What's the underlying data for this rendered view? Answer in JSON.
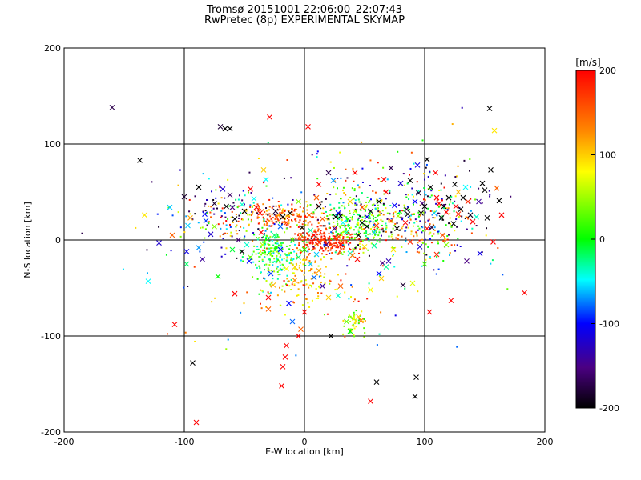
{
  "chart_data": {
    "type": "scatter",
    "title": "Tromsø 20151001 22:06:00–22:07:43",
    "subtitle": "RwPretec (8p) EXPERIMENTAL SKYMAP",
    "xlabel": "E-W location [km]",
    "ylabel": "N-S location [km]",
    "xlim": [
      -200,
      200
    ],
    "ylim": [
      -200,
      200
    ],
    "x_ticks": [
      -200,
      -100,
      0,
      100,
      200
    ],
    "y_ticks": [
      -200,
      -100,
      0,
      100,
      200
    ],
    "grid": "lines at ±100 and 0 on both axes",
    "colorbar": {
      "label": "[m/s]",
      "range": [
        -200,
        200
      ],
      "ticks": [
        200,
        100,
        0,
        -100,
        -200
      ],
      "colormap": "black-purple-blue-cyan-green-yellow-orange-red"
    },
    "x_markers": [
      [
        -160,
        138,
        -170
      ],
      [
        -137,
        83,
        -200
      ],
      [
        -133,
        26,
        90
      ],
      [
        -130,
        -43,
        -50
      ],
      [
        -121,
        -3,
        -120
      ],
      [
        -112,
        34,
        -60
      ],
      [
        -110,
        5,
        150
      ],
      [
        -108,
        -88,
        200
      ],
      [
        -100,
        45,
        -180
      ],
      [
        -98,
        -12,
        -110
      ],
      [
        -97,
        15,
        -60
      ],
      [
        -95,
        23,
        120
      ],
      [
        -93,
        -128,
        -200
      ],
      [
        -90,
        -190,
        200
      ],
      [
        -88,
        55,
        -200
      ],
      [
        -85,
        -20,
        -140
      ],
      [
        -82,
        20,
        -90
      ],
      [
        -78,
        6,
        -120
      ],
      [
        -75,
        38,
        -180
      ],
      [
        -70,
        118,
        -180
      ],
      [
        -66,
        116,
        -200
      ],
      [
        -62,
        116,
        -200
      ],
      [
        -68,
        53,
        -120
      ],
      [
        -60,
        34,
        -150
      ],
      [
        -58,
        22,
        -200
      ],
      [
        -55,
        0,
        -150
      ],
      [
        -52,
        37,
        -40
      ],
      [
        -50,
        30,
        -200
      ],
      [
        -46,
        -22,
        -100
      ],
      [
        -45,
        53,
        200
      ],
      [
        -42,
        43,
        -50
      ],
      [
        -40,
        34,
        200
      ],
      [
        -37,
        28,
        200
      ],
      [
        -34,
        73,
        100
      ],
      [
        -32,
        63,
        -50
      ],
      [
        -30,
        -60,
        200
      ],
      [
        -30,
        -72,
        150
      ],
      [
        -29,
        128,
        200
      ],
      [
        -26,
        -47,
        110
      ],
      [
        -24,
        30,
        -180
      ],
      [
        -20,
        -10,
        -100
      ],
      [
        -18,
        24,
        -200
      ],
      [
        -15,
        18,
        170
      ],
      [
        -13,
        -66,
        -100
      ],
      [
        -19,
        -152,
        200
      ],
      [
        -18,
        -132,
        200
      ],
      [
        -16,
        -122,
        200
      ],
      [
        -15,
        -110,
        200
      ],
      [
        -10,
        -85,
        -80
      ],
      [
        -8,
        -42,
        130
      ],
      [
        -5,
        -18,
        -20
      ],
      [
        -3,
        -93,
        150
      ],
      [
        0,
        -75,
        200
      ],
      [
        3,
        118,
        200
      ],
      [
        5,
        -25,
        -60
      ],
      [
        8,
        -39,
        -80
      ],
      [
        10,
        44,
        150
      ],
      [
        12,
        58,
        200
      ],
      [
        15,
        -48,
        -140
      ],
      [
        18,
        -5,
        -150
      ],
      [
        20,
        70,
        -170
      ],
      [
        22,
        -100,
        -200
      ],
      [
        24,
        62,
        -70
      ],
      [
        26,
        24,
        -200
      ],
      [
        28,
        28,
        -100
      ],
      [
        30,
        -48,
        150
      ],
      [
        32,
        18,
        -50
      ],
      [
        35,
        8,
        -30
      ],
      [
        38,
        -14,
        -40
      ],
      [
        40,
        -16,
        140
      ],
      [
        42,
        70,
        200
      ],
      [
        44,
        -20,
        200
      ],
      [
        45,
        -80,
        100
      ],
      [
        47,
        -84,
        140
      ],
      [
        48,
        34,
        160
      ],
      [
        50,
        -7,
        90
      ],
      [
        52,
        14,
        -200
      ],
      [
        55,
        -168,
        200
      ],
      [
        58,
        8,
        -60
      ],
      [
        60,
        -148,
        -200
      ],
      [
        62,
        40,
        -200
      ],
      [
        64,
        -40,
        100
      ],
      [
        65,
        -24,
        -150
      ],
      [
        66,
        63,
        200
      ],
      [
        68,
        50,
        200
      ],
      [
        70,
        -22,
        -130
      ],
      [
        72,
        75,
        -170
      ],
      [
        74,
        -10,
        90
      ],
      [
        75,
        36,
        -100
      ],
      [
        77,
        12,
        -200
      ],
      [
        78,
        25,
        50
      ],
      [
        80,
        59,
        -120
      ],
      [
        82,
        -47,
        -180
      ],
      [
        84,
        18,
        200
      ],
      [
        85,
        32,
        -180
      ],
      [
        86,
        27,
        -200
      ],
      [
        88,
        62,
        -200
      ],
      [
        90,
        -45,
        70
      ],
      [
        92,
        -163,
        -200
      ],
      [
        93,
        -143,
        -200
      ],
      [
        94,
        78,
        -110
      ],
      [
        95,
        49,
        -180
      ],
      [
        96,
        -7,
        -120
      ],
      [
        97,
        28,
        -200
      ],
      [
        98,
        38,
        -150
      ],
      [
        100,
        35,
        -200
      ],
      [
        102,
        12,
        200
      ],
      [
        104,
        -75,
        200
      ],
      [
        105,
        55,
        -200
      ],
      [
        106,
        13,
        -180
      ],
      [
        108,
        28,
        -60
      ],
      [
        110,
        44,
        200
      ],
      [
        112,
        38,
        200
      ],
      [
        114,
        23,
        -200
      ],
      [
        116,
        35,
        -200
      ],
      [
        118,
        29,
        200
      ],
      [
        120,
        44,
        -200
      ],
      [
        122,
        -63,
        200
      ],
      [
        124,
        17,
        -200
      ],
      [
        126,
        35,
        200
      ],
      [
        128,
        27,
        180
      ],
      [
        130,
        32,
        -200
      ],
      [
        132,
        44,
        -200
      ],
      [
        134,
        55,
        -50
      ],
      [
        136,
        40,
        180
      ],
      [
        138,
        26,
        -190
      ],
      [
        140,
        19,
        200
      ],
      [
        143,
        24,
        -40
      ],
      [
        145,
        40,
        -140
      ],
      [
        148,
        59,
        -200
      ],
      [
        150,
        52,
        -200
      ],
      [
        152,
        23,
        -200
      ],
      [
        154,
        137,
        -200
      ],
      [
        155,
        73,
        -200
      ],
      [
        157,
        -2,
        200
      ],
      [
        158,
        114,
        90
      ],
      [
        160,
        54,
        150
      ],
      [
        162,
        41,
        -200
      ],
      [
        164,
        26,
        200
      ],
      [
        183,
        -55,
        200
      ],
      [
        -25,
        5,
        -20
      ],
      [
        -10,
        0,
        20
      ],
      [
        0,
        -10,
        10
      ],
      [
        5,
        10,
        -30
      ],
      [
        -35,
        -5,
        60
      ],
      [
        -15,
        -30,
        80
      ],
      [
        15,
        22,
        150
      ],
      [
        30,
        -5,
        200
      ],
      [
        45,
        5,
        -200
      ],
      [
        60,
        15,
        170
      ],
      [
        -60,
        -10,
        -10
      ],
      [
        -5,
        40,
        40
      ],
      [
        20,
        -60,
        100
      ],
      [
        35,
        -85,
        30
      ],
      [
        38,
        -95,
        0
      ],
      [
        -48,
        -5,
        -40
      ],
      [
        -28,
        -35,
        -90
      ],
      [
        10,
        -15,
        -60
      ],
      [
        52,
        24,
        -110
      ],
      [
        68,
        -28,
        -30
      ],
      [
        -72,
        -38,
        0
      ],
      [
        -75,
        14,
        40
      ],
      [
        -98,
        -25,
        -20
      ],
      [
        -88,
        -8,
        -70
      ],
      [
        -52,
        -12,
        -200
      ],
      [
        8,
        5,
        200
      ],
      [
        25,
        12,
        -150
      ],
      [
        42,
        30,
        60
      ],
      [
        58,
        -6,
        -30
      ],
      [
        72,
        20,
        160
      ],
      [
        -36,
        8,
        200
      ],
      [
        -45,
        -18,
        40
      ],
      [
        -8,
        -28,
        100
      ],
      [
        12,
        -32,
        120
      ],
      [
        28,
        -58,
        -40
      ],
      [
        55,
        -52,
        80
      ],
      [
        -20,
        14,
        -80
      ],
      [
        -62,
        47,
        -160
      ],
      [
        -83,
        27,
        -100
      ],
      [
        -65,
        35,
        -200
      ],
      [
        110,
        -15,
        180
      ],
      [
        118,
        -5,
        40
      ],
      [
        125,
        58,
        -200
      ],
      [
        100,
        -25,
        20
      ],
      [
        102,
        84,
        -200
      ],
      [
        109,
        70,
        200
      ],
      [
        92,
        40,
        -100
      ],
      [
        88,
        -2,
        180
      ],
      [
        115,
        5,
        160
      ],
      [
        146,
        -14,
        -110
      ],
      [
        135,
        -22,
        -150
      ],
      [
        128,
        50,
        110
      ],
      [
        -58,
        -56,
        200
      ],
      [
        -5,
        -100,
        200
      ],
      [
        12,
        35,
        -200
      ],
      [
        4,
        26,
        150
      ],
      [
        -2,
        13,
        -200
      ],
      [
        -12,
        28,
        -200
      ],
      [
        -3,
        5,
        150
      ],
      [
        62,
        -35,
        -100
      ],
      [
        38,
        40,
        100
      ],
      [
        30,
        25,
        -200
      ],
      [
        48,
        18,
        -200
      ],
      [
        55,
        30,
        -180
      ]
    ],
    "dots": [
      {
        "center": [
          -20,
          25
        ],
        "sd": [
          18,
          7
        ],
        "n": 160,
        "vrange": [
          100,
          200
        ]
      },
      {
        "center": [
          -25,
          -15
        ],
        "sd": [
          12,
          14
        ],
        "n": 220,
        "vrange": [
          -60,
          60
        ]
      },
      {
        "center": [
          0,
          -30
        ],
        "sd": [
          8,
          15
        ],
        "n": 70,
        "vrange": [
          60,
          150
        ]
      },
      {
        "center": [
          20,
          -2
        ],
        "sd": [
          13,
          7
        ],
        "n": 220,
        "vrange": [
          150,
          200
        ]
      },
      {
        "center": [
          45,
          18
        ],
        "sd": [
          15,
          13
        ],
        "n": 220,
        "vrange": [
          -30,
          80
        ]
      },
      {
        "center": [
          100,
          20
        ],
        "sd": [
          25,
          18
        ],
        "n": 220,
        "vrange": [
          -200,
          200
        ]
      },
      {
        "center": [
          40,
          -85
        ],
        "sd": [
          5,
          8
        ],
        "n": 45,
        "vrange": [
          0,
          100
        ]
      },
      {
        "center": [
          -65,
          25
        ],
        "sd": [
          20,
          15
        ],
        "n": 120,
        "vrange": [
          -200,
          200
        ]
      },
      {
        "center": [
          50,
          40
        ],
        "sd": [
          40,
          25
        ],
        "n": 150,
        "vrange": [
          -200,
          200
        ]
      },
      {
        "center": [
          0,
          0
        ],
        "sd": [
          80,
          60
        ],
        "n": 150,
        "vrange": [
          -200,
          200
        ]
      },
      {
        "center": [
          5,
          -55
        ],
        "sd": [
          25,
          10
        ],
        "n": 60,
        "vrange": [
          50,
          200
        ]
      }
    ]
  }
}
